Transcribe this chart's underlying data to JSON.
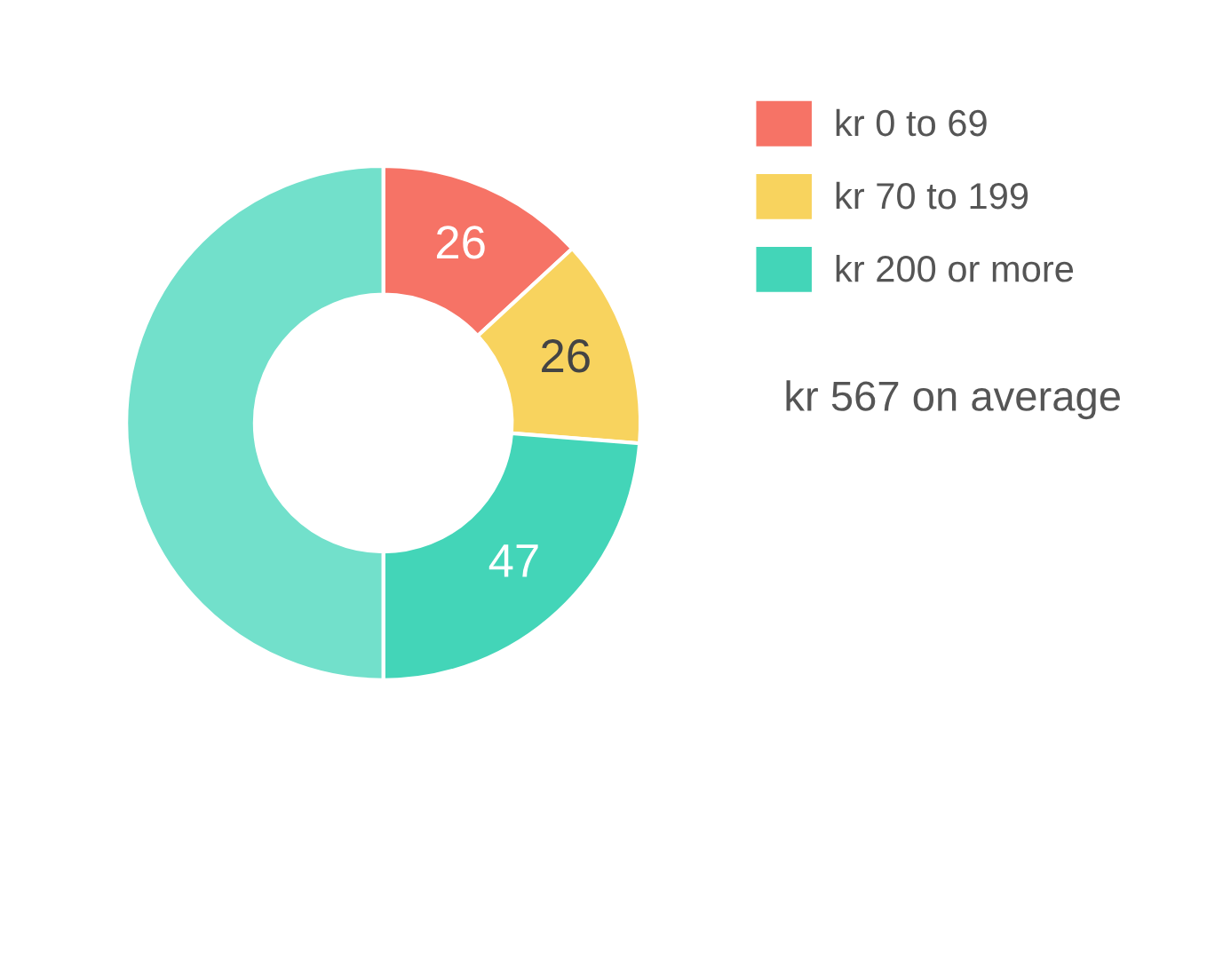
{
  "chart_data": {
    "type": "donut",
    "categories": [
      "kr 0 to 69",
      "kr 70 to 199",
      "kr 200 or more",
      null
    ],
    "values": [
      26,
      26,
      47,
      99
    ],
    "value_labels": [
      "26",
      "26",
      "47",
      null
    ],
    "colors": [
      "#f67366",
      "#f8d35e",
      "#43d5b8",
      "#72e0cb"
    ],
    "legend": "right",
    "annotations": [
      "kr 567 on average"
    ]
  }
}
